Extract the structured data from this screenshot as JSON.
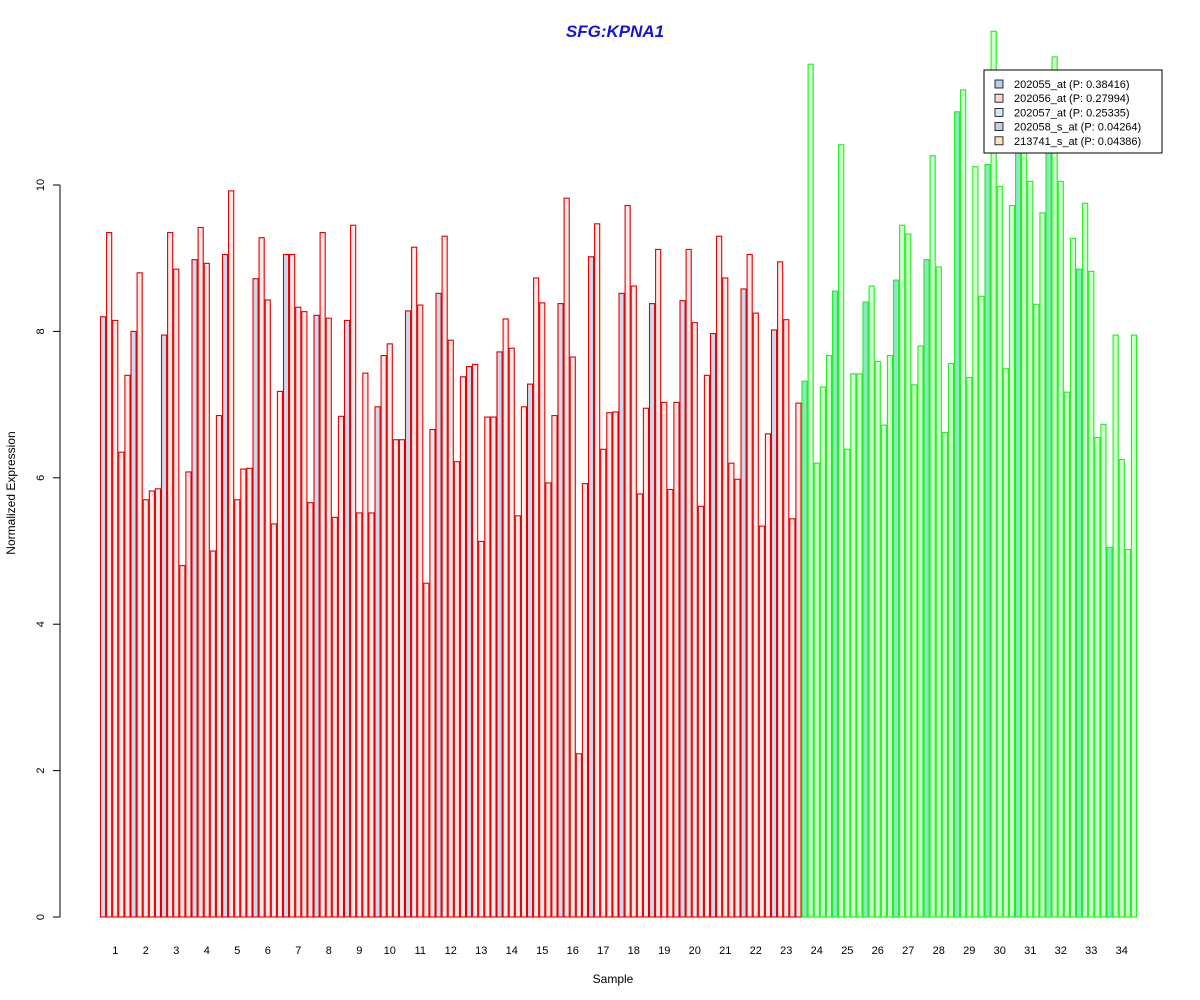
{
  "chart_data": {
    "type": "bar",
    "title": "SFG:KPNA1",
    "xlabel": "Sample",
    "ylabel": "Normalized Expression",
    "ylim": [
      0,
      12
    ],
    "yticks": [
      "0",
      "2",
      "4",
      "6",
      "8",
      "10"
    ],
    "categories": [
      "1",
      "2",
      "3",
      "4",
      "5",
      "6",
      "7",
      "8",
      "9",
      "10",
      "11",
      "12",
      "13",
      "14",
      "15",
      "16",
      "17",
      "18",
      "19",
      "20",
      "21",
      "22",
      "23",
      "24",
      "25",
      "26",
      "27",
      "28",
      "29",
      "30",
      "31",
      "32",
      "33",
      "34"
    ],
    "legend_position": "top-right",
    "series": [
      {
        "name": "202055_at (P: 0.38416)",
        "values": [
          8.2,
          8.0,
          7.95,
          8.98,
          9.05,
          8.72,
          9.05,
          8.22,
          8.15,
          6.97,
          8.28,
          8.52,
          7.52,
          7.72,
          7.28,
          8.38,
          9.02,
          8.52,
          8.38,
          8.42,
          7.97,
          8.58,
          8.02,
          7.32,
          8.55,
          8.4,
          8.7,
          8.98,
          11.0,
          10.28,
          10.85,
          10.65,
          8.85,
          5.05
        ]
      },
      {
        "name": "202056_at (P: 0.27994)",
        "values": [
          9.35,
          8.8,
          9.35,
          9.42,
          9.92,
          9.28,
          9.05,
          9.35,
          9.45,
          7.67,
          9.15,
          9.3,
          7.55,
          8.17,
          8.73,
          9.82,
          9.47,
          9.72,
          9.12,
          9.12,
          9.3,
          9.05,
          8.95,
          11.65,
          10.55,
          8.62,
          9.45,
          10.4,
          11.3,
          12.1,
          11.0,
          11.75,
          9.75,
          7.95
        ]
      },
      {
        "name": "202057_at (P: 0.25335)",
        "values": [
          8.15,
          5.7,
          8.85,
          8.93,
          5.7,
          8.43,
          8.33,
          8.18,
          5.52,
          7.83,
          8.36,
          7.88,
          5.13,
          7.77,
          8.39,
          7.65,
          6.39,
          8.62,
          7.03,
          8.12,
          8.73,
          8.25,
          8.16,
          6.2,
          6.39,
          7.59,
          9.33,
          8.88,
          7.37,
          9.98,
          10.05,
          10.05,
          8.82,
          6.25
        ]
      },
      {
        "name": "202058_s_at (P: 0.04264)",
        "values": [
          6.35,
          5.82,
          4.8,
          5.0,
          6.12,
          5.37,
          8.27,
          5.46,
          7.43,
          6.52,
          4.56,
          6.22,
          6.83,
          5.48,
          5.93,
          2.23,
          6.89,
          5.78,
          5.84,
          5.61,
          6.2,
          5.34,
          5.44,
          7.24,
          7.42,
          6.72,
          7.27,
          6.62,
          10.25,
          7.49,
          8.37,
          7.17,
          6.55,
          5.02
        ]
      },
      {
        "name": "213741_s_at (P: 0.04386)",
        "values": [
          7.4,
          5.85,
          6.08,
          6.85,
          6.13,
          7.18,
          5.66,
          6.84,
          5.52,
          6.52,
          6.66,
          7.38,
          6.83,
          6.97,
          6.85,
          5.92,
          6.9,
          6.95,
          7.03,
          7.4,
          5.98,
          6.6,
          7.02,
          7.67,
          7.42,
          7.67,
          7.8,
          7.56,
          8.48,
          9.72,
          9.62,
          9.27,
          6.73,
          7.95
        ]
      }
    ],
    "bar_colors": {
      "group_a": {
        "fill": "#ffe8e8",
        "stroke": "#e00000"
      },
      "group_b": {
        "fill": "#ccffcc",
        "stroke": "#22ee22"
      },
      "first_series_fill_a": "#ccd8ee",
      "first_series_fill_b": "#88e8c0"
    },
    "group_b_start_sample": "24"
  }
}
